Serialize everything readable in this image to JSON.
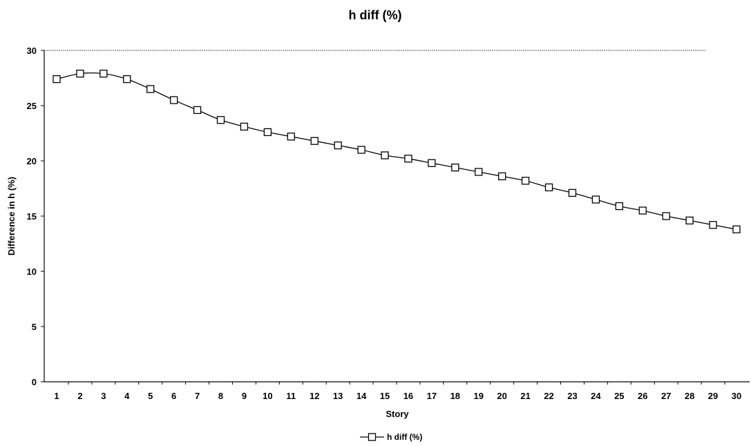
{
  "chart_data": {
    "type": "line",
    "title": "h diff (%)",
    "xlabel": "Story",
    "ylabel": "Difference in h (%)",
    "categories": [
      "1",
      "2",
      "3",
      "4",
      "5",
      "6",
      "7",
      "8",
      "9",
      "10",
      "11",
      "12",
      "13",
      "14",
      "15",
      "16",
      "17",
      "18",
      "19",
      "20",
      "21",
      "22",
      "23",
      "24",
      "25",
      "26",
      "27",
      "28",
      "29",
      "30"
    ],
    "series": [
      {
        "name": "h diff (%)",
        "color": "#000000",
        "marker": "square",
        "values": [
          27.4,
          27.9,
          27.9,
          27.4,
          26.5,
          25.5,
          24.6,
          23.7,
          23.1,
          22.6,
          22.2,
          21.8,
          21.4,
          21.0,
          20.5,
          20.2,
          19.8,
          19.4,
          19.0,
          18.6,
          18.2,
          17.6,
          17.1,
          16.5,
          15.9,
          15.5,
          15.0,
          14.6,
          14.2,
          13.8
        ]
      }
    ],
    "ylim": [
      0,
      30
    ],
    "yticks": [
      0,
      5,
      10,
      15,
      20,
      25,
      30
    ],
    "legend": {
      "position": "bottom-center",
      "label": "h diff (%)"
    },
    "grid": false
  }
}
